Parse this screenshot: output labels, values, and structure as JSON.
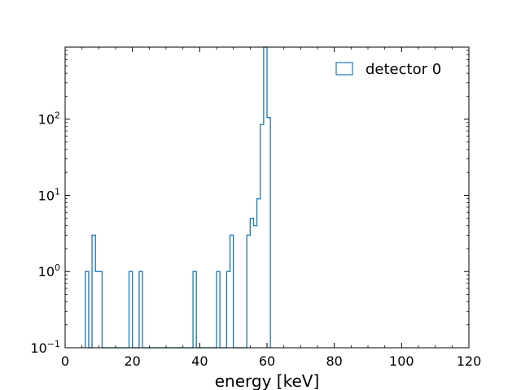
{
  "chart_data": {
    "type": "histogram-step",
    "xlabel": "energy [keV]",
    "ylabel": "",
    "xlim": [
      0,
      120
    ],
    "ylim": [
      0.1,
      880
    ],
    "yscale": "log",
    "x_ticks": [
      0,
      20,
      40,
      60,
      80,
      100,
      120
    ],
    "x_tick_labels": [
      "0",
      "20",
      "40",
      "60",
      "80",
      "100",
      "120"
    ],
    "y_ticks": [
      0.1,
      1,
      10,
      100
    ],
    "y_tick_labels": [
      {
        "base": "10",
        "exp": "−1"
      },
      {
        "base": "10",
        "exp": "0"
      },
      {
        "base": "10",
        "exp": "1"
      },
      {
        "base": "10",
        "exp": "2"
      }
    ],
    "grid": false,
    "legend_position": "top-right",
    "series": [
      {
        "name": "detector 0",
        "color": "#1f77b4",
        "bin_width": 1,
        "bins": [
          [
            6,
            1
          ],
          [
            7,
            0
          ],
          [
            8,
            3
          ],
          [
            9,
            1
          ],
          [
            10,
            1
          ],
          [
            11,
            0
          ],
          [
            19,
            1
          ],
          [
            20,
            0
          ],
          [
            22,
            1
          ],
          [
            23,
            0
          ],
          [
            38,
            1
          ],
          [
            39,
            0
          ],
          [
            45,
            1
          ],
          [
            46,
            0
          ],
          [
            48,
            1
          ],
          [
            49,
            3
          ],
          [
            50,
            0
          ],
          [
            54,
            3
          ],
          [
            55,
            5
          ],
          [
            56,
            4
          ],
          [
            57,
            9
          ],
          [
            58,
            85
          ],
          [
            59,
            880
          ],
          [
            60,
            105
          ],
          [
            61,
            0
          ]
        ]
      }
    ]
  }
}
